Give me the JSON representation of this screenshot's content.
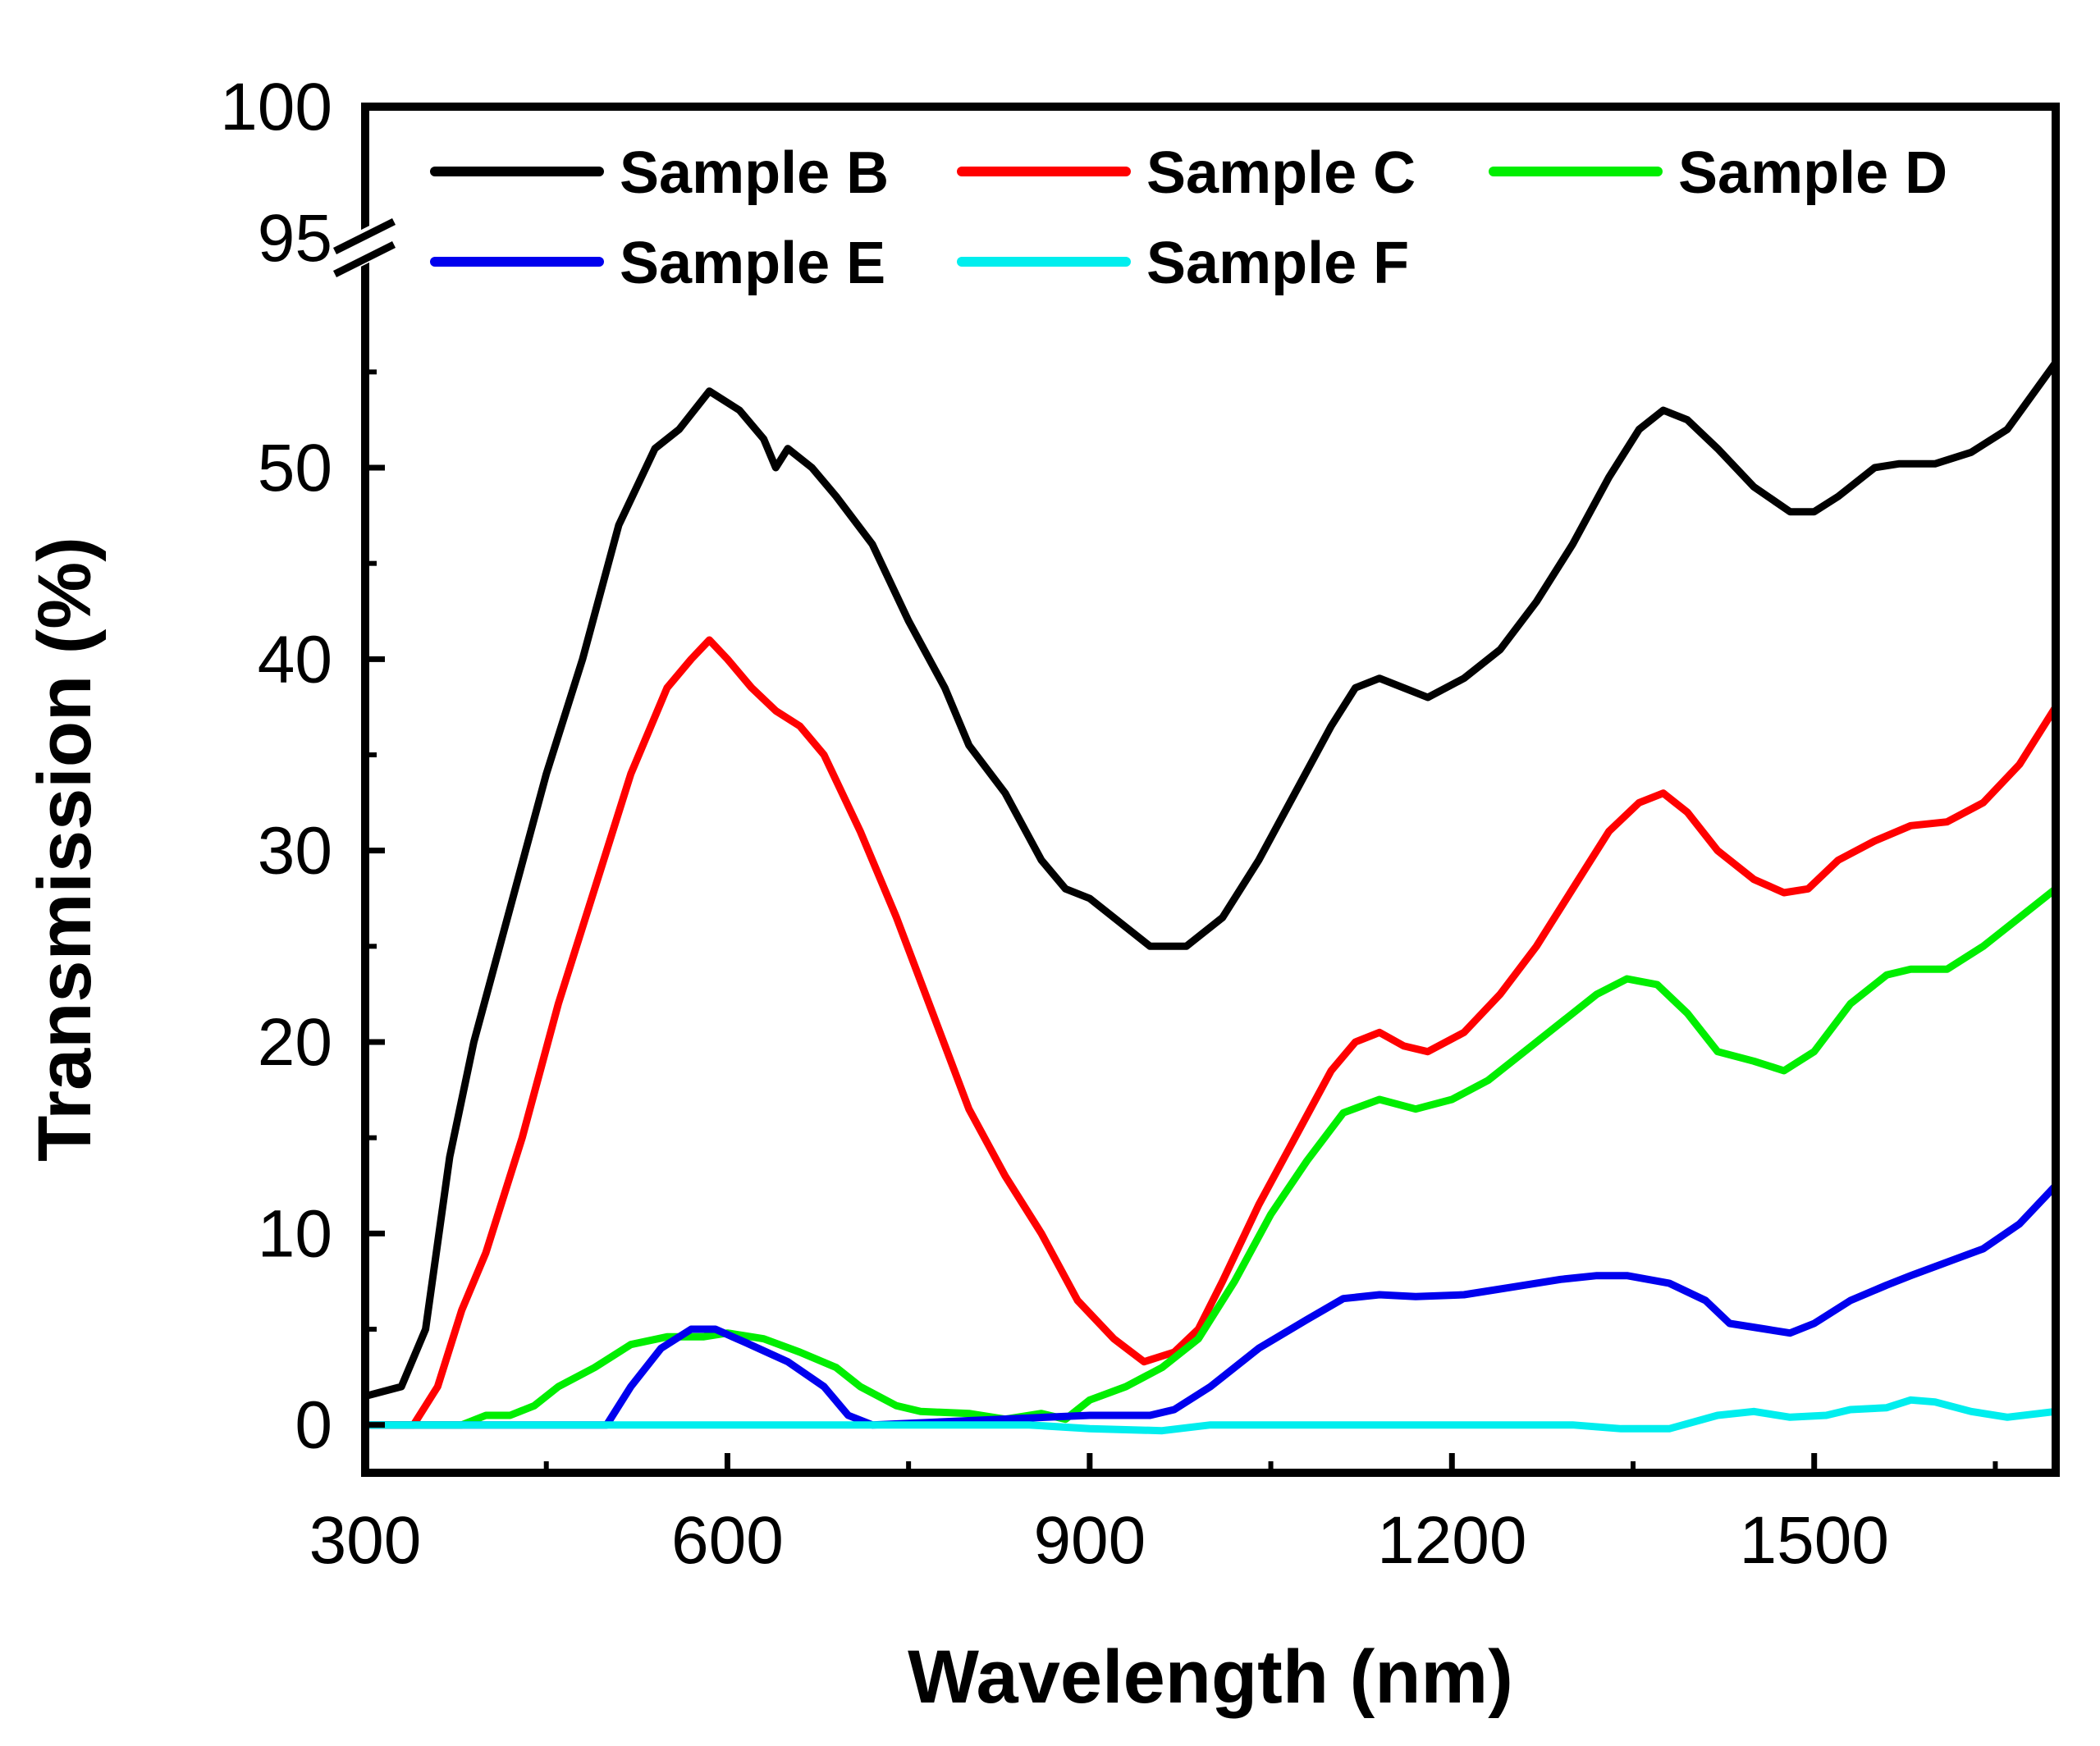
{
  "chart_data": {
    "type": "line",
    "xlabel": "Wavelength (nm)",
    "ylabel": "Transmission (%)",
    "xlim": [
      300,
      1700
    ],
    "ylim": [
      -2.5,
      56
    ],
    "axis_break": {
      "lower": 55,
      "upper": 95,
      "top": 100
    },
    "x_ticks": [
      300,
      600,
      900,
      1200,
      1500
    ],
    "x_tick_labels": [
      "300",
      "600",
      "900",
      "1200",
      "1500"
    ],
    "y_ticks": [
      0,
      10,
      20,
      30,
      40,
      50,
      95,
      100
    ],
    "y_tick_labels": [
      "0",
      "10",
      "20",
      "30",
      "40",
      "50",
      "95",
      "100"
    ],
    "grid": false,
    "legend_position": "top",
    "series": [
      {
        "name": "Sample B",
        "color": "#000000",
        "points": [
          [
            300,
            1.5
          ],
          [
            330,
            2
          ],
          [
            350,
            5
          ],
          [
            370,
            14
          ],
          [
            390,
            20
          ],
          [
            420,
            27
          ],
          [
            450,
            34
          ],
          [
            480,
            40
          ],
          [
            510,
            47
          ],
          [
            540,
            51
          ],
          [
            560,
            52
          ],
          [
            585,
            54
          ],
          [
            610,
            53
          ],
          [
            630,
            51.5
          ],
          [
            640,
            50
          ],
          [
            650,
            51
          ],
          [
            670,
            50
          ],
          [
            690,
            48.5
          ],
          [
            720,
            46
          ],
          [
            750,
            42
          ],
          [
            780,
            38.5
          ],
          [
            800,
            35.5
          ],
          [
            830,
            33
          ],
          [
            860,
            29.5
          ],
          [
            880,
            28
          ],
          [
            900,
            27.5
          ],
          [
            930,
            26
          ],
          [
            950,
            25
          ],
          [
            980,
            25
          ],
          [
            1010,
            26.5
          ],
          [
            1040,
            29.5
          ],
          [
            1070,
            33
          ],
          [
            1100,
            36.5
          ],
          [
            1120,
            38.5
          ],
          [
            1140,
            39
          ],
          [
            1160,
            38.5
          ],
          [
            1180,
            38
          ],
          [
            1210,
            39
          ],
          [
            1240,
            40.5
          ],
          [
            1270,
            43
          ],
          [
            1300,
            46
          ],
          [
            1330,
            49.5
          ],
          [
            1355,
            52
          ],
          [
            1375,
            53
          ],
          [
            1395,
            52.5
          ],
          [
            1420,
            51
          ],
          [
            1450,
            49
          ],
          [
            1480,
            47.7
          ],
          [
            1500,
            47.7
          ],
          [
            1520,
            48.5
          ],
          [
            1550,
            50
          ],
          [
            1570,
            50.2
          ],
          [
            1600,
            50.2
          ],
          [
            1630,
            50.8
          ],
          [
            1660,
            52
          ],
          [
            1700,
            55.5
          ]
        ]
      },
      {
        "name": "Sample C",
        "color": "#ff0000",
        "points": [
          [
            300,
            0
          ],
          [
            340,
            0
          ],
          [
            360,
            2
          ],
          [
            380,
            6
          ],
          [
            400,
            9
          ],
          [
            430,
            15
          ],
          [
            460,
            22
          ],
          [
            490,
            28
          ],
          [
            520,
            34
          ],
          [
            550,
            38.5
          ],
          [
            570,
            40
          ],
          [
            585,
            41
          ],
          [
            600,
            40
          ],
          [
            620,
            38.5
          ],
          [
            640,
            37.3
          ],
          [
            660,
            36.5
          ],
          [
            680,
            35
          ],
          [
            710,
            31
          ],
          [
            740,
            26.5
          ],
          [
            770,
            21.5
          ],
          [
            800,
            16.5
          ],
          [
            830,
            13
          ],
          [
            860,
            10
          ],
          [
            890,
            6.5
          ],
          [
            920,
            4.5
          ],
          [
            945,
            3.3
          ],
          [
            970,
            3.8
          ],
          [
            990,
            5
          ],
          [
            1010,
            7.5
          ],
          [
            1040,
            11.5
          ],
          [
            1070,
            15
          ],
          [
            1100,
            18.5
          ],
          [
            1120,
            20
          ],
          [
            1140,
            20.5
          ],
          [
            1160,
            19.8
          ],
          [
            1180,
            19.5
          ],
          [
            1210,
            20.5
          ],
          [
            1240,
            22.5
          ],
          [
            1270,
            25
          ],
          [
            1300,
            28
          ],
          [
            1330,
            31
          ],
          [
            1355,
            32.5
          ],
          [
            1375,
            33
          ],
          [
            1395,
            32
          ],
          [
            1420,
            30
          ],
          [
            1450,
            28.5
          ],
          [
            1475,
            27.8
          ],
          [
            1495,
            28
          ],
          [
            1520,
            29.5
          ],
          [
            1550,
            30.5
          ],
          [
            1580,
            31.3
          ],
          [
            1610,
            31.5
          ],
          [
            1640,
            32.5
          ],
          [
            1670,
            34.5
          ],
          [
            1700,
            37.5
          ]
        ]
      },
      {
        "name": "Sample D",
        "color": "#00ee00",
        "points": [
          [
            300,
            0
          ],
          [
            380,
            0
          ],
          [
            400,
            0.5
          ],
          [
            420,
            0.5
          ],
          [
            440,
            1
          ],
          [
            460,
            2
          ],
          [
            490,
            3
          ],
          [
            520,
            4.2
          ],
          [
            550,
            4.6
          ],
          [
            580,
            4.6
          ],
          [
            600,
            4.8
          ],
          [
            630,
            4.5
          ],
          [
            660,
            3.8
          ],
          [
            690,
            3
          ],
          [
            710,
            2
          ],
          [
            740,
            1
          ],
          [
            760,
            0.7
          ],
          [
            800,
            0.6
          ],
          [
            830,
            0.3
          ],
          [
            860,
            0.6
          ],
          [
            880,
            0.3
          ],
          [
            900,
            1.3
          ],
          [
            930,
            2
          ],
          [
            960,
            3
          ],
          [
            990,
            4.5
          ],
          [
            1020,
            7.5
          ],
          [
            1050,
            11
          ],
          [
            1080,
            13.8
          ],
          [
            1110,
            16.3
          ],
          [
            1140,
            17
          ],
          [
            1170,
            16.5
          ],
          [
            1200,
            17
          ],
          [
            1230,
            18
          ],
          [
            1260,
            19.5
          ],
          [
            1290,
            21
          ],
          [
            1320,
            22.5
          ],
          [
            1345,
            23.3
          ],
          [
            1370,
            23
          ],
          [
            1395,
            21.5
          ],
          [
            1420,
            19.5
          ],
          [
            1450,
            19
          ],
          [
            1475,
            18.5
          ],
          [
            1500,
            19.5
          ],
          [
            1530,
            22
          ],
          [
            1560,
            23.5
          ],
          [
            1580,
            23.8
          ],
          [
            1610,
            23.8
          ],
          [
            1640,
            25
          ],
          [
            1670,
            26.5
          ],
          [
            1700,
            28
          ]
        ]
      },
      {
        "name": "Sample E",
        "color": "#0000ee",
        "points": [
          [
            300,
            0
          ],
          [
            500,
            0
          ],
          [
            520,
            2
          ],
          [
            545,
            4
          ],
          [
            570,
            5
          ],
          [
            590,
            5
          ],
          [
            615,
            4.3
          ],
          [
            650,
            3.3
          ],
          [
            680,
            2
          ],
          [
            700,
            0.5
          ],
          [
            720,
            0
          ],
          [
            900,
            0.5
          ],
          [
            950,
            0.5
          ],
          [
            970,
            0.8
          ],
          [
            1000,
            2
          ],
          [
            1040,
            4
          ],
          [
            1080,
            5.5
          ],
          [
            1110,
            6.6
          ],
          [
            1140,
            6.8
          ],
          [
            1170,
            6.7
          ],
          [
            1210,
            6.8
          ],
          [
            1250,
            7.2
          ],
          [
            1290,
            7.6
          ],
          [
            1320,
            7.8
          ],
          [
            1345,
            7.8
          ],
          [
            1380,
            7.4
          ],
          [
            1410,
            6.5
          ],
          [
            1430,
            5.3
          ],
          [
            1460,
            5
          ],
          [
            1480,
            4.8
          ],
          [
            1500,
            5.3
          ],
          [
            1530,
            6.5
          ],
          [
            1560,
            7.3
          ],
          [
            1580,
            7.8
          ],
          [
            1610,
            8.5
          ],
          [
            1640,
            9.2
          ],
          [
            1670,
            10.5
          ],
          [
            1700,
            12.5
          ]
        ]
      },
      {
        "name": "Sample F",
        "color": "#00eeee",
        "points": [
          [
            300,
            0
          ],
          [
            500,
            0
          ],
          [
            700,
            0
          ],
          [
            850,
            0
          ],
          [
            900,
            -0.2
          ],
          [
            960,
            -0.3
          ],
          [
            1000,
            0
          ],
          [
            1100,
            0
          ],
          [
            1200,
            0
          ],
          [
            1300,
            0
          ],
          [
            1340,
            -0.2
          ],
          [
            1380,
            -0.2
          ],
          [
            1420,
            0.5
          ],
          [
            1450,
            0.7
          ],
          [
            1480,
            0.4
          ],
          [
            1510,
            0.5
          ],
          [
            1530,
            0.8
          ],
          [
            1560,
            0.9
          ],
          [
            1580,
            1.3
          ],
          [
            1600,
            1.2
          ],
          [
            1630,
            0.7
          ],
          [
            1660,
            0.4
          ],
          [
            1700,
            0.7
          ]
        ]
      }
    ]
  }
}
